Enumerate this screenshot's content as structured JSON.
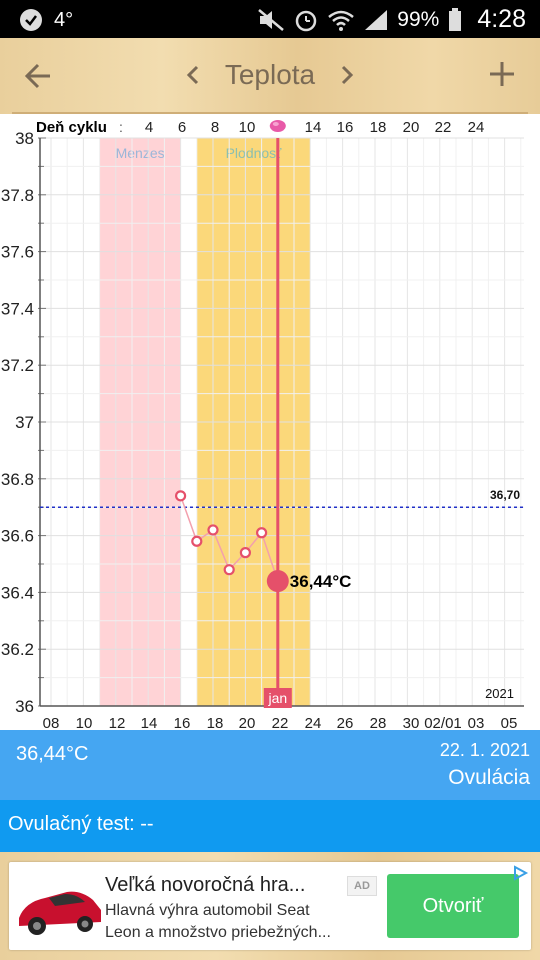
{
  "status_bar": {
    "time": "4:28",
    "battery": "99%",
    "temperature": "4°"
  },
  "header": {
    "title": "Teplota"
  },
  "chart_data": {
    "type": "line",
    "ylim": [
      36,
      38
    ],
    "y_ticks": [
      "38",
      "37.8",
      "37.6",
      "37.4",
      "37.2",
      "37",
      "36.8",
      "36.6",
      "36.4",
      "36.2",
      "36"
    ],
    "cycle_label": "Deň cyklu",
    "cycle_ticks": [
      "4",
      "6",
      "8",
      "10",
      "14",
      "16",
      "18",
      "20",
      "22",
      "24"
    ],
    "x_ticks": [
      "08",
      "10",
      "12",
      "14",
      "16",
      "18",
      "20",
      "22",
      "24",
      "26",
      "28",
      "30",
      "02/01",
      "03",
      "05"
    ],
    "year_label": "2021",
    "month_label": "jan",
    "threshold": {
      "value": 36.7,
      "label": "36,70"
    },
    "bands": [
      {
        "label": "Menzes",
        "from_day": 11,
        "to_day": 16,
        "color": "#ffd3d6"
      },
      {
        "label": "Plodnosť",
        "from_day": 17,
        "to_day": 24,
        "color": "#fbd87a"
      }
    ],
    "ovulation_day": 22,
    "series": [
      {
        "points": [
          {
            "day": 16,
            "temp": 36.74
          },
          {
            "day": 17,
            "temp": 36.58
          },
          {
            "day": 18,
            "temp": 36.62
          },
          {
            "day": 19,
            "temp": 36.48
          },
          {
            "day": 20,
            "temp": 36.54
          },
          {
            "day": 21,
            "temp": 36.61
          },
          {
            "day": 22,
            "temp": 36.44
          }
        ]
      }
    ],
    "highlight": {
      "day": 22,
      "temp": 36.44,
      "label": "36,44°C"
    }
  },
  "info": {
    "temp": "36,44°C",
    "date": "22. 1. 2021",
    "phase": "Ovulácia"
  },
  "ovulation_test": {
    "label": "Ovulačný test: --"
  },
  "ad": {
    "headline": "Veľká novoročná hra...",
    "badge": "AD",
    "desc_line1": "Hlavná výhra automobil Seat",
    "desc_line2": "Leon a množstvo priebežných...",
    "cta": "Otvoriť"
  }
}
